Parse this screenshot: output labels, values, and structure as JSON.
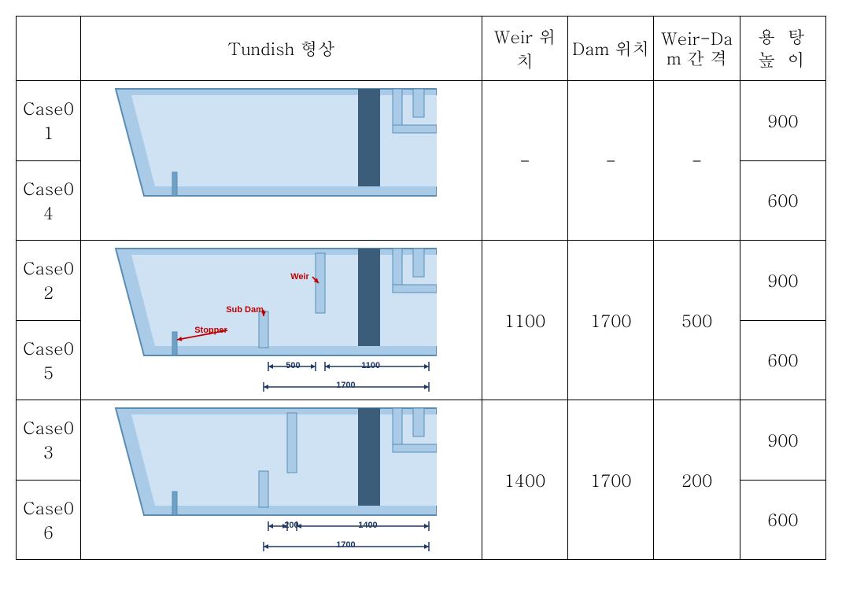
{
  "headers": {
    "shape": "Tundish 형상",
    "weir_pos": "Weir\n위치",
    "dam_pos": "Dam\n위치",
    "gap": "Weir-Da\nm\n간   격",
    "height": "용 탕\n높 이"
  },
  "rows": [
    {
      "case": "Case0\n1",
      "height": "900"
    },
    {
      "case": "Case0\n4",
      "height": "600"
    },
    {
      "case": "Case0\n2",
      "height": "900"
    },
    {
      "case": "Case0\n5",
      "height": "600"
    },
    {
      "case": "Case0\n3",
      "height": "900"
    },
    {
      "case": "Case0\n6",
      "height": "600"
    }
  ],
  "groups": [
    {
      "weir": "-",
      "dam": "-",
      "gap": "-"
    },
    {
      "weir": "1100",
      "dam": "1700",
      "gap": "500"
    },
    {
      "weir": "1400",
      "dam": "1700",
      "gap": "200"
    }
  ],
  "diagrams": {
    "annot": {
      "weir": "Weir",
      "subdam": "Sub Dam",
      "stopper": "Stopper"
    },
    "d2": {
      "dim_gap": "500",
      "dim_weir": "1100",
      "dim_dam": "1700"
    },
    "d3": {
      "dim_gap": "200",
      "dim_weir": "1400",
      "dim_dam": "1700"
    }
  },
  "colors": {
    "body_fill": "#a9cbe8",
    "body_stroke": "#5b8db3",
    "cavity": "#cfe2f3",
    "weir_dark": "#3b5d7a",
    "stopper": "#6fa0c6",
    "dim_line": "#1f3864",
    "annot_red": "#c00000",
    "border": "#000000",
    "bg": "#ffffff"
  }
}
